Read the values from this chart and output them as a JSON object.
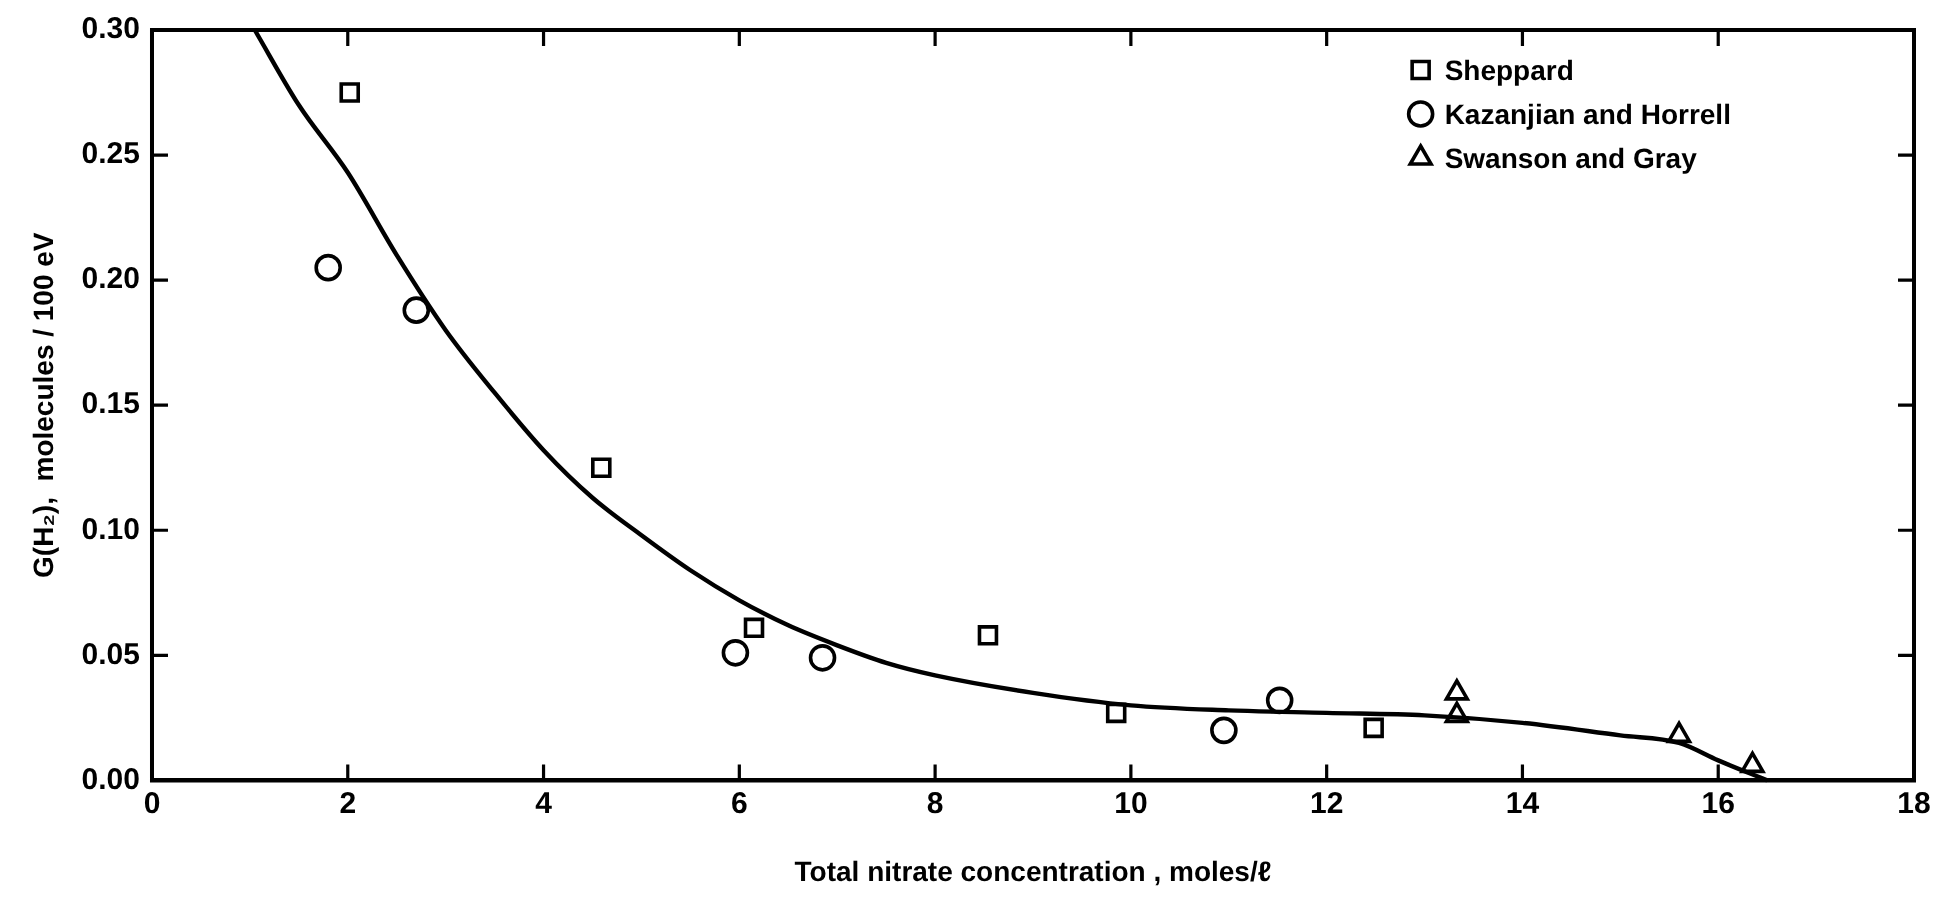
{
  "chart_data": {
    "type": "scatter",
    "xlabel": "Total nitrate concentration , moles/ℓ",
    "ylabel": "G(H₂),  molecules / 100 eV",
    "xlim": [
      0,
      18
    ],
    "xticks": [
      0,
      2,
      4,
      6,
      8,
      10,
      12,
      14,
      16,
      18
    ],
    "ylim": [
      0,
      0.3
    ],
    "yticks": [
      {
        "value": 0,
        "label": "0.00"
      },
      {
        "value": 0.05,
        "label": "0.05"
      },
      {
        "value": 0.1,
        "label": "0.10"
      },
      {
        "value": 0.15,
        "label": "0.15"
      },
      {
        "value": 0.2,
        "label": "0.20"
      },
      {
        "value": 0.25,
        "label": "0.25"
      },
      {
        "value": 0.3,
        "label": "0.30"
      }
    ],
    "grid": false,
    "legend": "top right",
    "series": [
      {
        "name": "Sheppard",
        "marker": "square",
        "color": "#000000",
        "x": [
          2.02,
          4.59,
          6.15,
          8.54,
          9.85,
          12.48
        ],
        "values": [
          0.275,
          0.125,
          0.061,
          0.058,
          0.027,
          0.021
        ]
      },
      {
        "name": "Kazanjian and Horrell",
        "marker": "circle",
        "color": "#000000",
        "x": [
          1.8,
          2.7,
          5.96,
          6.85,
          10.95,
          11.52
        ],
        "values": [
          0.205,
          0.188,
          0.051,
          0.049,
          0.02,
          0.032
        ]
      },
      {
        "name": "Swanson and Gray",
        "marker": "triangle",
        "color": "#000000",
        "x": [
          13.33,
          13.33,
          15.6,
          16.35
        ],
        "values": [
          0.035,
          0.026,
          0.018,
          0.006
        ]
      },
      {
        "type": "line",
        "marker": "none",
        "color": "#000000",
        "x": [
          1.05,
          1.5,
          2,
          2.5,
          3,
          3.5,
          4,
          4.5,
          5,
          5.5,
          6,
          6.5,
          7,
          7.5,
          8,
          9,
          10,
          11,
          12,
          13,
          14,
          15,
          15.6,
          16,
          16.5
        ],
        "values": [
          0.3,
          0.27,
          0.243,
          0.21,
          0.18,
          0.155,
          0.132,
          0.113,
          0.098,
          0.084,
          0.072,
          0.062,
          0.054,
          0.047,
          0.042,
          0.035,
          0.03,
          0.028,
          0.027,
          0.026,
          0.023,
          0.018,
          0.015,
          0.008,
          0.0
        ]
      }
    ]
  }
}
